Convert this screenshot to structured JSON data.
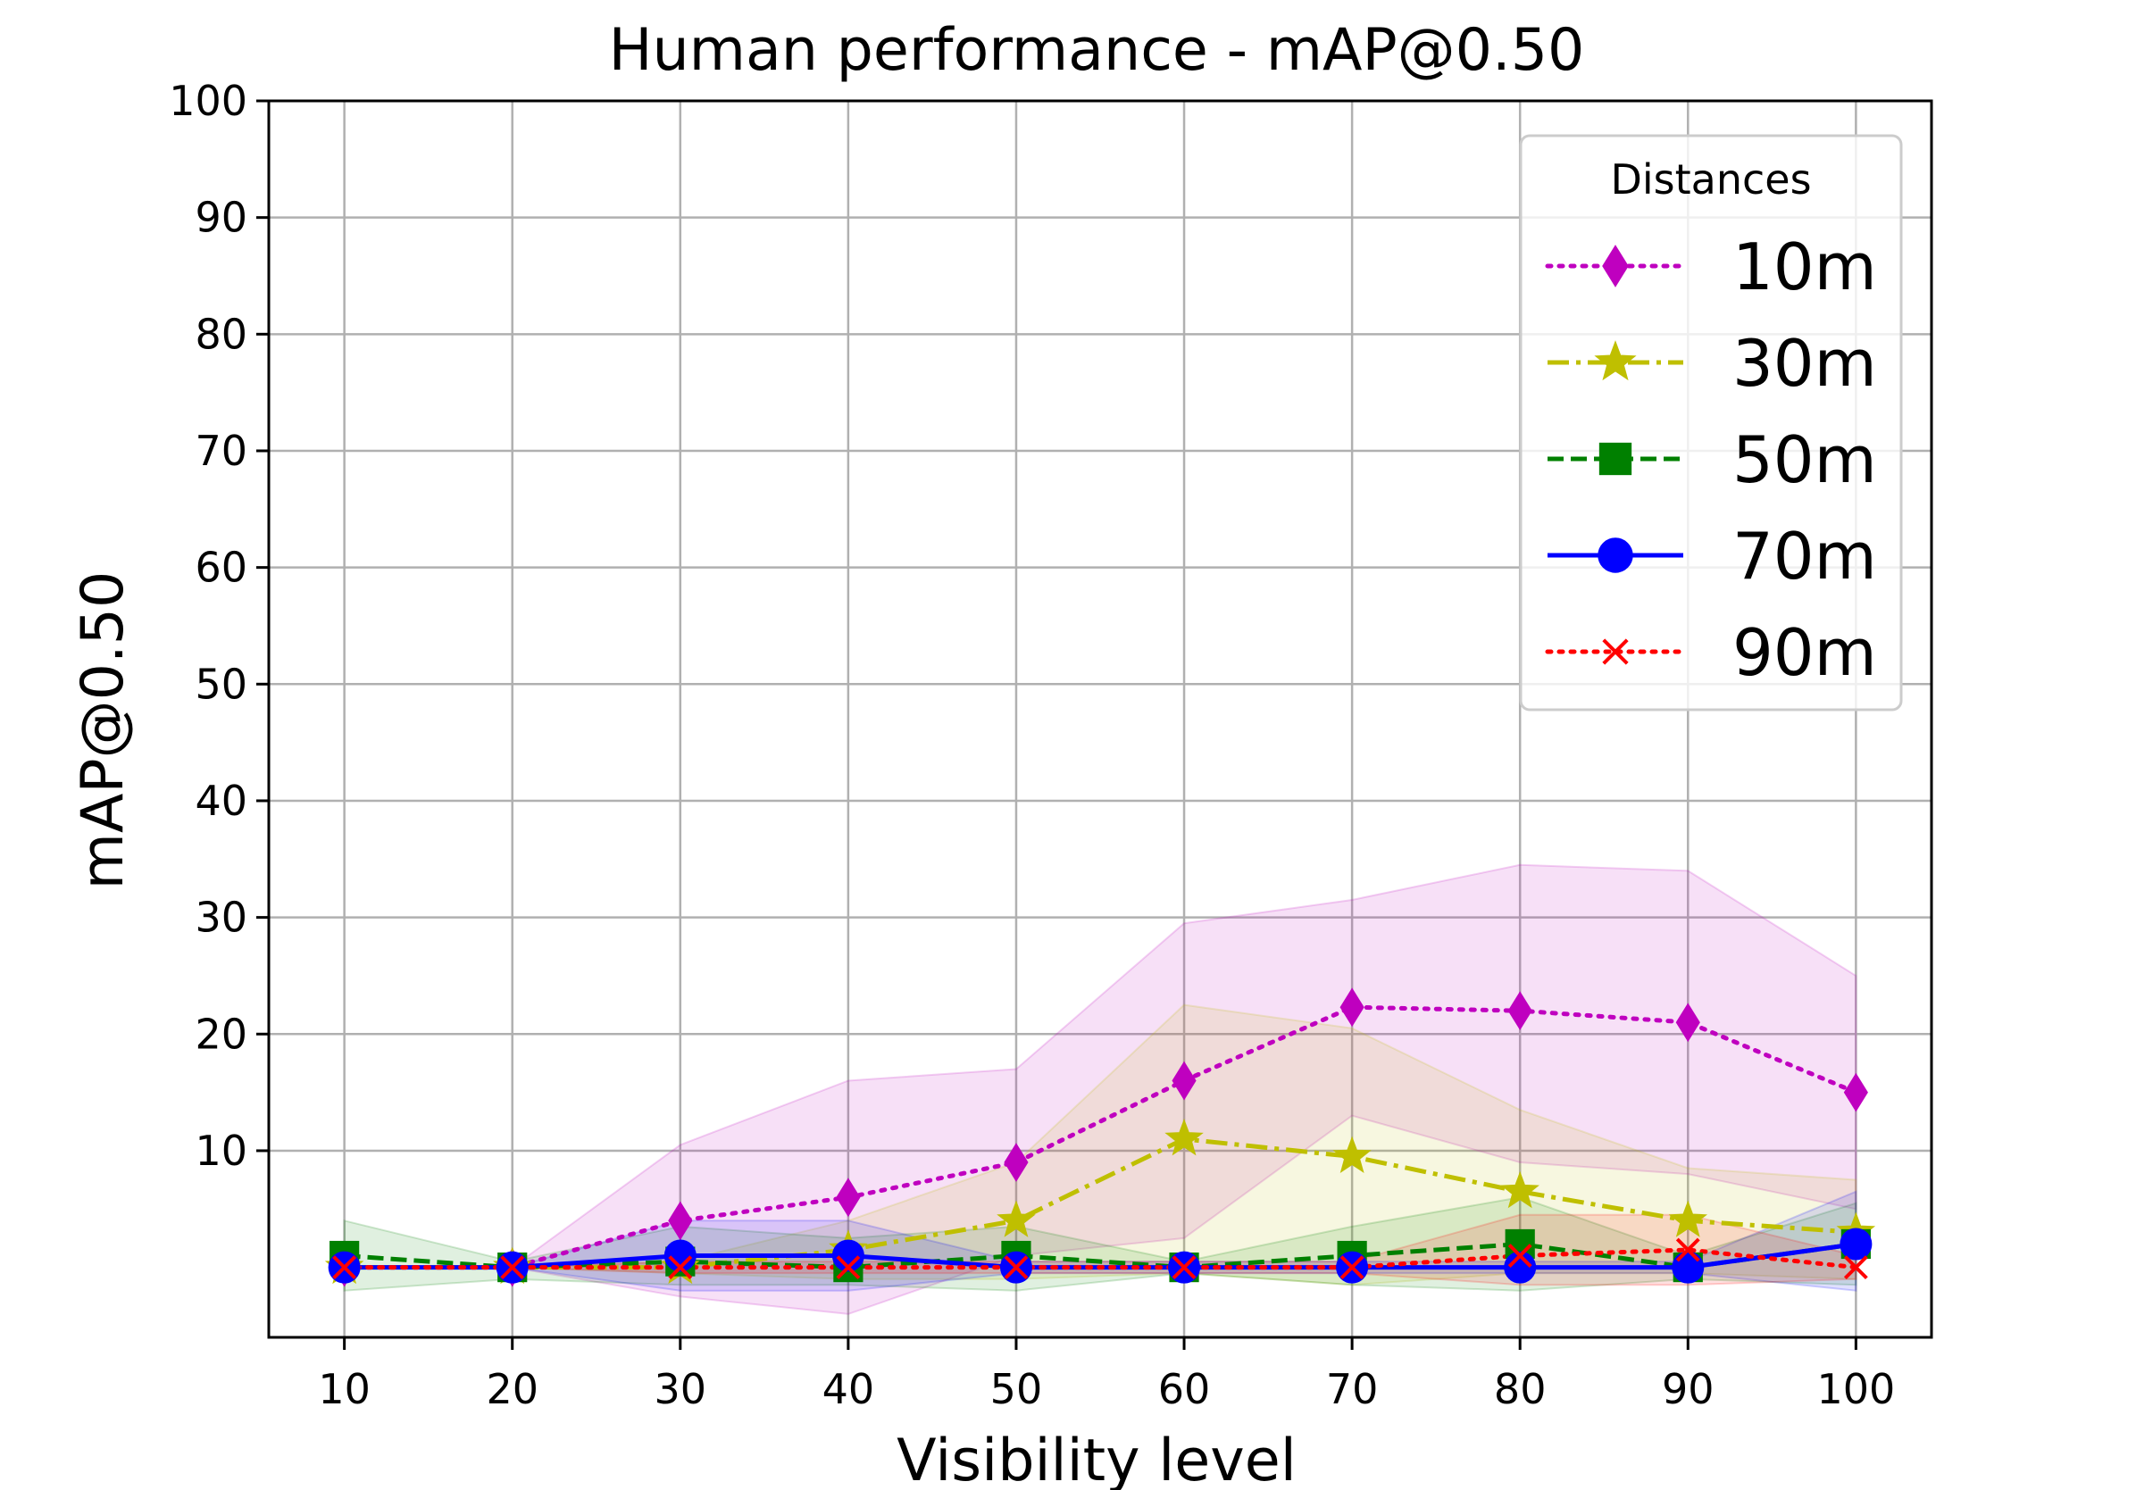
{
  "chart_data": {
    "type": "line",
    "title": "Human performance - mAP@0.50",
    "xlabel": "Visibility level",
    "ylabel": "mAP@0.50",
    "x": [
      10,
      20,
      30,
      40,
      50,
      60,
      70,
      80,
      90,
      100
    ],
    "xlim": [
      5.5,
      104.5
    ],
    "ylim": [
      -6,
      100
    ],
    "xticks": [
      10,
      20,
      30,
      40,
      50,
      60,
      70,
      80,
      90,
      100
    ],
    "yticks": [
      10,
      20,
      30,
      40,
      50,
      60,
      70,
      80,
      90,
      100
    ],
    "grid": true,
    "legend": {
      "title": "Distances",
      "position": "top-right"
    },
    "series": [
      {
        "name": "10m",
        "color": "#bf00bf",
        "linestyle": "dotted",
        "marker": "thin-diamond",
        "values": [
          0,
          0,
          4,
          6,
          9,
          16,
          22.3,
          22,
          21,
          15
        ],
        "band_upper": [
          0,
          0,
          10.5,
          16,
          17,
          29.5,
          31.5,
          34.5,
          34,
          25
        ],
        "band_lower": [
          0,
          0,
          -2.5,
          -4,
          1,
          2.5,
          13,
          9,
          8,
          5
        ]
      },
      {
        "name": "30m",
        "color": "#bfbf00",
        "linestyle": "dashdot",
        "marker": "star",
        "values": [
          0,
          0,
          0,
          1.5,
          4,
          11,
          9.5,
          6.5,
          4,
          3
        ],
        "band_upper": [
          0,
          0,
          0.5,
          4,
          9,
          22.5,
          20.5,
          13.5,
          8.5,
          7.5
        ],
        "band_lower": [
          0,
          0,
          -0.5,
          -1,
          -1,
          -0.5,
          -1.5,
          -0.5,
          -0.5,
          -1
        ]
      },
      {
        "name": "50m",
        "color": "#008000",
        "linestyle": "dashed",
        "marker": "square",
        "values": [
          1,
          0,
          0.5,
          0,
          1,
          0,
          1,
          2,
          0,
          2
        ],
        "band_upper": [
          4,
          0.5,
          3.5,
          2.5,
          3.5,
          0.5,
          3.5,
          6,
          1,
          5.5
        ],
        "band_lower": [
          -2,
          -1,
          -1.5,
          -1.5,
          -2,
          -0.5,
          -1.5,
          -2,
          -1,
          -1.5
        ]
      },
      {
        "name": "70m",
        "color": "#0000ff",
        "linestyle": "solid",
        "marker": "circle",
        "values": [
          0,
          0,
          1,
          1,
          0,
          0,
          0,
          0,
          0,
          2
        ],
        "band_upper": [
          0,
          0,
          4,
          4,
          0.5,
          0.5,
          0.5,
          0.5,
          0.5,
          6.5
        ],
        "band_lower": [
          0,
          0,
          -2,
          -2,
          -0.5,
          -0.5,
          -0.5,
          -0.5,
          -0.5,
          -2
        ]
      },
      {
        "name": "90m",
        "color": "#ff0000",
        "linestyle": "dotted",
        "marker": "x",
        "values": [
          0,
          0,
          0,
          0,
          0,
          0,
          0,
          1,
          1.5,
          0
        ],
        "band_upper": [
          0,
          0,
          0.5,
          0.5,
          0.5,
          0.5,
          0.5,
          4.5,
          4.5,
          1
        ],
        "band_lower": [
          0,
          0,
          -0.5,
          -0.5,
          -0.5,
          -0.5,
          -0.5,
          -1.5,
          -1.5,
          -1
        ]
      }
    ]
  }
}
